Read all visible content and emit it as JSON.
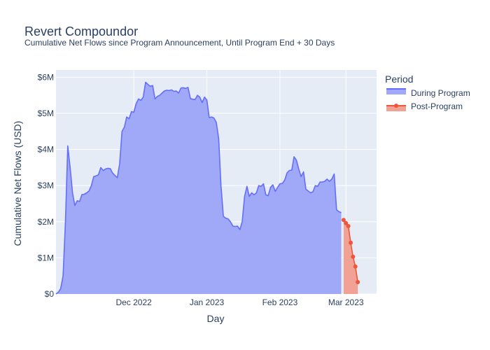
{
  "chart_data": {
    "type": "area",
    "title": "Revert Compoundor",
    "subtitle": "Cumulative Net Flows since Program Announcement, Until Program End + 30 Days",
    "xlabel": "Day",
    "ylabel": "Cumulative Net Flows (USD)",
    "x_range": [
      "2022-10-29",
      "2023-03-14"
    ],
    "ylim": [
      0,
      6200000
    ],
    "x_ticks": [
      {
        "date": "2022-12-01",
        "label": "Dec 2022"
      },
      {
        "date": "2023-01-01",
        "label": "Jan 2023"
      },
      {
        "date": "2023-02-01",
        "label": "Feb 2023"
      },
      {
        "date": "2023-03-01",
        "label": "Mar 2023"
      }
    ],
    "y_ticks": [
      {
        "value": 0,
        "label": "$0"
      },
      {
        "value": 1000000,
        "label": "$1M"
      },
      {
        "value": 2000000,
        "label": "$2M"
      },
      {
        "value": 3000000,
        "label": "$3M"
      },
      {
        "value": 4000000,
        "label": "$4M"
      },
      {
        "value": 5000000,
        "label": "$5M"
      },
      {
        "value": 6000000,
        "label": "$6M"
      }
    ],
    "legend": {
      "title": "Period",
      "placement": "right"
    },
    "grid": true,
    "colors": {
      "plot_bg": "#e5ecf6",
      "during_line": "#636efa",
      "during_fill": "#a0a8f8",
      "post_line": "#ef553b",
      "post_fill": "#f2a295"
    },
    "series": [
      {
        "name": "During Program",
        "points": [
          [
            "2022-10-29",
            0
          ],
          [
            "2022-10-30",
            50000
          ],
          [
            "2022-10-31",
            150000
          ],
          [
            "2022-11-01",
            500000
          ],
          [
            "2022-11-02",
            2000000
          ],
          [
            "2022-11-03",
            4100000
          ],
          [
            "2022-11-04",
            3500000
          ],
          [
            "2022-11-05",
            2800000
          ],
          [
            "2022-11-06",
            2450000
          ],
          [
            "2022-11-07",
            2580000
          ],
          [
            "2022-11-08",
            2560000
          ],
          [
            "2022-11-09",
            2750000
          ],
          [
            "2022-11-10",
            2760000
          ],
          [
            "2022-11-11",
            2800000
          ],
          [
            "2022-11-12",
            2850000
          ],
          [
            "2022-11-13",
            3000000
          ],
          [
            "2022-11-14",
            3250000
          ],
          [
            "2022-11-15",
            3270000
          ],
          [
            "2022-11-16",
            3300000
          ],
          [
            "2022-11-17",
            3500000
          ],
          [
            "2022-11-18",
            3420000
          ],
          [
            "2022-11-19",
            3460000
          ],
          [
            "2022-11-20",
            3480000
          ],
          [
            "2022-11-21",
            3470000
          ],
          [
            "2022-11-22",
            3350000
          ],
          [
            "2022-11-23",
            3280000
          ],
          [
            "2022-11-24",
            3220000
          ],
          [
            "2022-11-25",
            3600000
          ],
          [
            "2022-11-26",
            4500000
          ],
          [
            "2022-11-27",
            4620000
          ],
          [
            "2022-11-28",
            4900000
          ],
          [
            "2022-11-29",
            4850000
          ],
          [
            "2022-11-30",
            5050000
          ],
          [
            "2022-12-01",
            5030000
          ],
          [
            "2022-12-02",
            5270000
          ],
          [
            "2022-12-03",
            5400000
          ],
          [
            "2022-12-04",
            5360000
          ],
          [
            "2022-12-05",
            5450000
          ],
          [
            "2022-12-06",
            5860000
          ],
          [
            "2022-12-07",
            5800000
          ],
          [
            "2022-12-08",
            5750000
          ],
          [
            "2022-12-09",
            5770000
          ],
          [
            "2022-12-10",
            5400000
          ],
          [
            "2022-12-11",
            5470000
          ],
          [
            "2022-12-12",
            5500000
          ],
          [
            "2022-12-13",
            5560000
          ],
          [
            "2022-12-14",
            5620000
          ],
          [
            "2022-12-15",
            5640000
          ],
          [
            "2022-12-16",
            5630000
          ],
          [
            "2022-12-17",
            5650000
          ],
          [
            "2022-12-18",
            5610000
          ],
          [
            "2022-12-19",
            5620000
          ],
          [
            "2022-12-20",
            5560000
          ],
          [
            "2022-12-21",
            5700000
          ],
          [
            "2022-12-22",
            5710000
          ],
          [
            "2022-12-23",
            5690000
          ],
          [
            "2022-12-24",
            5720000
          ],
          [
            "2022-12-25",
            5410000
          ],
          [
            "2022-12-26",
            5390000
          ],
          [
            "2022-12-27",
            5380000
          ],
          [
            "2022-12-28",
            5500000
          ],
          [
            "2022-12-29",
            5450000
          ],
          [
            "2022-12-30",
            5300000
          ],
          [
            "2022-12-31",
            5450000
          ],
          [
            "2023-01-01",
            5370000
          ],
          [
            "2023-01-02",
            4880000
          ],
          [
            "2023-01-03",
            4900000
          ],
          [
            "2023-01-04",
            4870000
          ],
          [
            "2023-01-05",
            4750000
          ],
          [
            "2023-01-06",
            4300000
          ],
          [
            "2023-01-07",
            3000000
          ],
          [
            "2023-01-08",
            2150000
          ],
          [
            "2023-01-09",
            2100000
          ],
          [
            "2023-01-10",
            2080000
          ],
          [
            "2023-01-11",
            2000000
          ],
          [
            "2023-01-12",
            1880000
          ],
          [
            "2023-01-13",
            1870000
          ],
          [
            "2023-01-14",
            1880000
          ],
          [
            "2023-01-15",
            1780000
          ],
          [
            "2023-01-16",
            2000000
          ],
          [
            "2023-01-17",
            2700000
          ],
          [
            "2023-01-18",
            2980000
          ],
          [
            "2023-01-19",
            2700000
          ],
          [
            "2023-01-20",
            2800000
          ],
          [
            "2023-01-21",
            2750000
          ],
          [
            "2023-01-22",
            2800000
          ],
          [
            "2023-01-23",
            3000000
          ],
          [
            "2023-01-24",
            2980000
          ],
          [
            "2023-01-25",
            3050000
          ],
          [
            "2023-01-26",
            2750000
          ],
          [
            "2023-01-27",
            2720000
          ],
          [
            "2023-01-28",
            2950000
          ],
          [
            "2023-01-29",
            3020000
          ],
          [
            "2023-01-30",
            2840000
          ],
          [
            "2023-01-31",
            2950000
          ],
          [
            "2023-02-01",
            3050000
          ],
          [
            "2023-02-02",
            3060000
          ],
          [
            "2023-02-03",
            3150000
          ],
          [
            "2023-02-04",
            3350000
          ],
          [
            "2023-02-05",
            3420000
          ],
          [
            "2023-02-06",
            3430000
          ],
          [
            "2023-02-07",
            3800000
          ],
          [
            "2023-02-08",
            3700000
          ],
          [
            "2023-02-09",
            3450000
          ],
          [
            "2023-02-10",
            3250000
          ],
          [
            "2023-02-11",
            3380000
          ],
          [
            "2023-02-12",
            2900000
          ],
          [
            "2023-02-13",
            2850000
          ],
          [
            "2023-02-14",
            2800000
          ],
          [
            "2023-02-15",
            2830000
          ],
          [
            "2023-02-16",
            3000000
          ],
          [
            "2023-02-17",
            2980000
          ],
          [
            "2023-02-18",
            3100000
          ],
          [
            "2023-02-19",
            3100000
          ],
          [
            "2023-02-20",
            3120000
          ],
          [
            "2023-02-21",
            3180000
          ],
          [
            "2023-02-22",
            3120000
          ],
          [
            "2023-02-23",
            3180000
          ],
          [
            "2023-02-24",
            3320000
          ],
          [
            "2023-02-25",
            2330000
          ],
          [
            "2023-02-26",
            2280000
          ],
          [
            "2023-02-27",
            2250000
          ]
        ]
      },
      {
        "name": "Post-Program",
        "points": [
          [
            "2023-02-28",
            2050000
          ],
          [
            "2023-03-01",
            1960000
          ],
          [
            "2023-03-02",
            1880000
          ],
          [
            "2023-03-03",
            1420000
          ],
          [
            "2023-03-04",
            1030000
          ],
          [
            "2023-03-05",
            760000
          ],
          [
            "2023-03-06",
            330000
          ]
        ]
      }
    ]
  }
}
